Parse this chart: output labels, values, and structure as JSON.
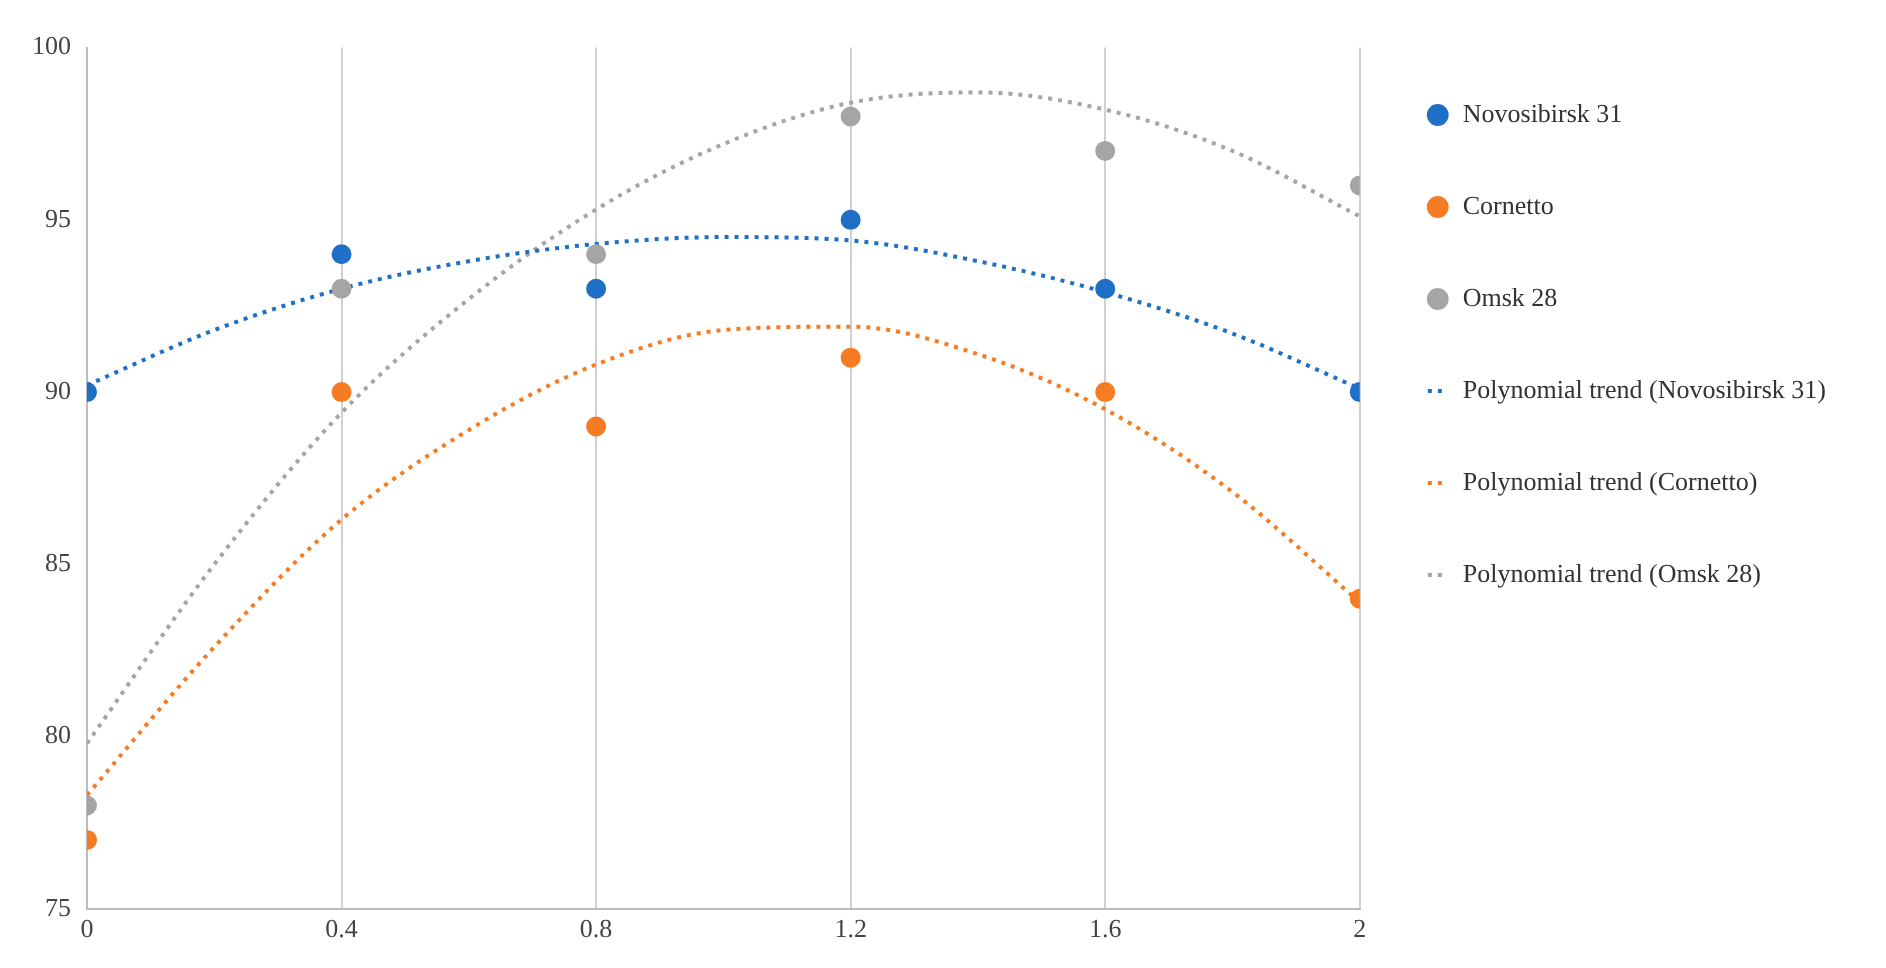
{
  "chart_data": {
    "type": "scatter",
    "xlim": [
      0,
      2
    ],
    "xticks": [
      0,
      0.4,
      0.8,
      1.2,
      1.6,
      2
    ],
    "ylim": [
      75,
      100
    ],
    "yticks": [
      75,
      80,
      85,
      90,
      95,
      100
    ],
    "grid": "x",
    "legend": "right",
    "marker": "circle",
    "series": [
      {
        "name": "Novosibirsk 31",
        "color": "#1f6fc6",
        "x": [
          0,
          0.4,
          0.8,
          1.2,
          1.6,
          2
        ],
        "values": [
          90,
          94,
          93,
          95,
          93,
          90
        ]
      },
      {
        "name": "Cornetto",
        "color": "#f57c22",
        "x": [
          0,
          0.4,
          0.8,
          1.2,
          1.6,
          2
        ],
        "values": [
          77,
          90,
          89,
          91,
          90,
          84
        ]
      },
      {
        "name": "Omsk 28",
        "color": "#a5a5a5",
        "x": [
          0,
          0.4,
          0.8,
          1.2,
          1.6,
          2
        ],
        "values": [
          78,
          93,
          94,
          98,
          97,
          96
        ]
      },
      {
        "name": "Polynomial trend (Novosibirsk 31)",
        "type": "line",
        "line_style": "dotted",
        "marker": "none",
        "color": "#1f6fc6",
        "x": [
          0,
          0.2,
          0.4,
          0.6,
          0.8,
          1.0,
          1.2,
          1.4,
          1.6,
          1.8,
          2.0
        ],
        "values": [
          90.2,
          91.8,
          93.0,
          93.8,
          94.3,
          94.5,
          94.4,
          93.8,
          92.9,
          91.7,
          90.1
        ]
      },
      {
        "name": "Polynomial trend (Cornetto)",
        "type": "line",
        "line_style": "dotted",
        "marker": "none",
        "color": "#f57c22",
        "x": [
          0,
          0.2,
          0.4,
          0.6,
          0.8,
          1.0,
          1.2,
          1.4,
          1.6,
          1.8,
          2.0
        ],
        "values": [
          78.3,
          82.6,
          86.3,
          88.9,
          90.8,
          91.8,
          91.9,
          91.1,
          89.5,
          87.1,
          83.9
        ]
      },
      {
        "name": "Polynomial trend (Omsk 28)",
        "type": "line",
        "line_style": "dotted",
        "marker": "none",
        "color": "#a5a5a5",
        "x": [
          0,
          0.2,
          0.4,
          0.6,
          0.8,
          1.0,
          1.2,
          1.4,
          1.6,
          1.8,
          2.0
        ],
        "values": [
          79.8,
          85.0,
          89.4,
          92.7,
          95.3,
          97.2,
          98.4,
          98.7,
          98.2,
          97.0,
          95.1
        ]
      }
    ]
  }
}
